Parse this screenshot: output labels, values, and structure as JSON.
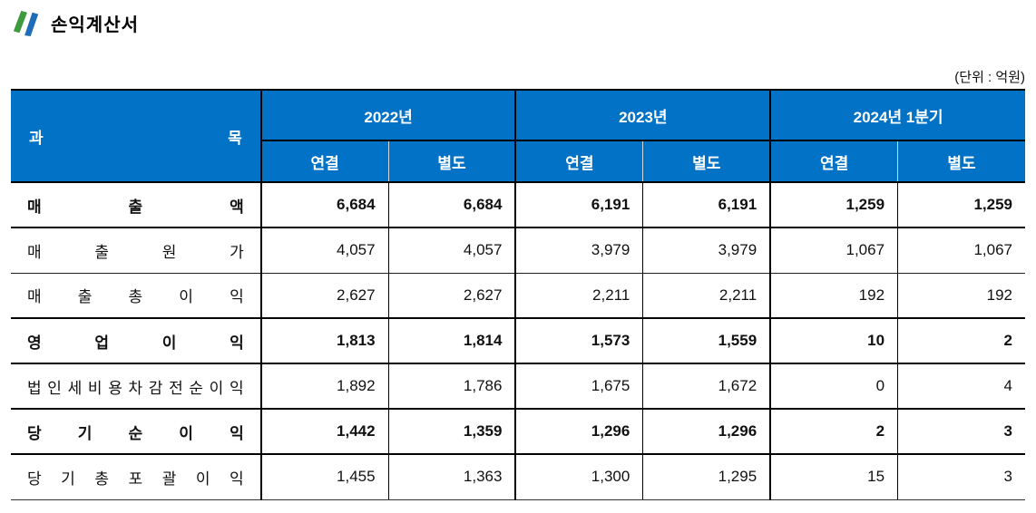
{
  "page": {
    "title": "손익계산서",
    "unit_note": "(단위 : 억원)"
  },
  "colors": {
    "header_bg": "#0172c5",
    "header_text": "#ffffff",
    "logo_green": "#3d9b3e",
    "logo_blue": "#1f6cb8"
  },
  "table": {
    "item_header": "과목",
    "groups": [
      {
        "label": "2022년",
        "sub": [
          "연결",
          "별도"
        ]
      },
      {
        "label": "2023년",
        "sub": [
          "연결",
          "별도"
        ]
      },
      {
        "label": "2024년 1분기",
        "sub": [
          "연결",
          "별도"
        ]
      }
    ],
    "rows": [
      {
        "label": "매출액",
        "bold": true,
        "values": [
          "6,684",
          "6,684",
          "6,191",
          "6,191",
          "1,259",
          "1,259"
        ]
      },
      {
        "label": "매출원가",
        "bold": false,
        "values": [
          "4,057",
          "4,057",
          "3,979",
          "3,979",
          "1,067",
          "1,067"
        ]
      },
      {
        "label": "매출총이익",
        "bold": false,
        "values": [
          "2,627",
          "2,627",
          "2,211",
          "2,211",
          "192",
          "192"
        ]
      },
      {
        "label": "영업이익",
        "bold": true,
        "values": [
          "1,813",
          "1,814",
          "1,573",
          "1,559",
          "10",
          "2"
        ]
      },
      {
        "label": "법인세비용차감전순이익",
        "bold": false,
        "values": [
          "1,892",
          "1,786",
          "1,675",
          "1,672",
          "0",
          "4"
        ]
      },
      {
        "label": "당기순이익",
        "bold": true,
        "values": [
          "1,442",
          "1,359",
          "1,296",
          "1,296",
          "2",
          "3"
        ]
      },
      {
        "label": "당기총포괄이익",
        "bold": false,
        "values": [
          "1,455",
          "1,363",
          "1,300",
          "1,295",
          "15",
          "3"
        ]
      }
    ]
  }
}
